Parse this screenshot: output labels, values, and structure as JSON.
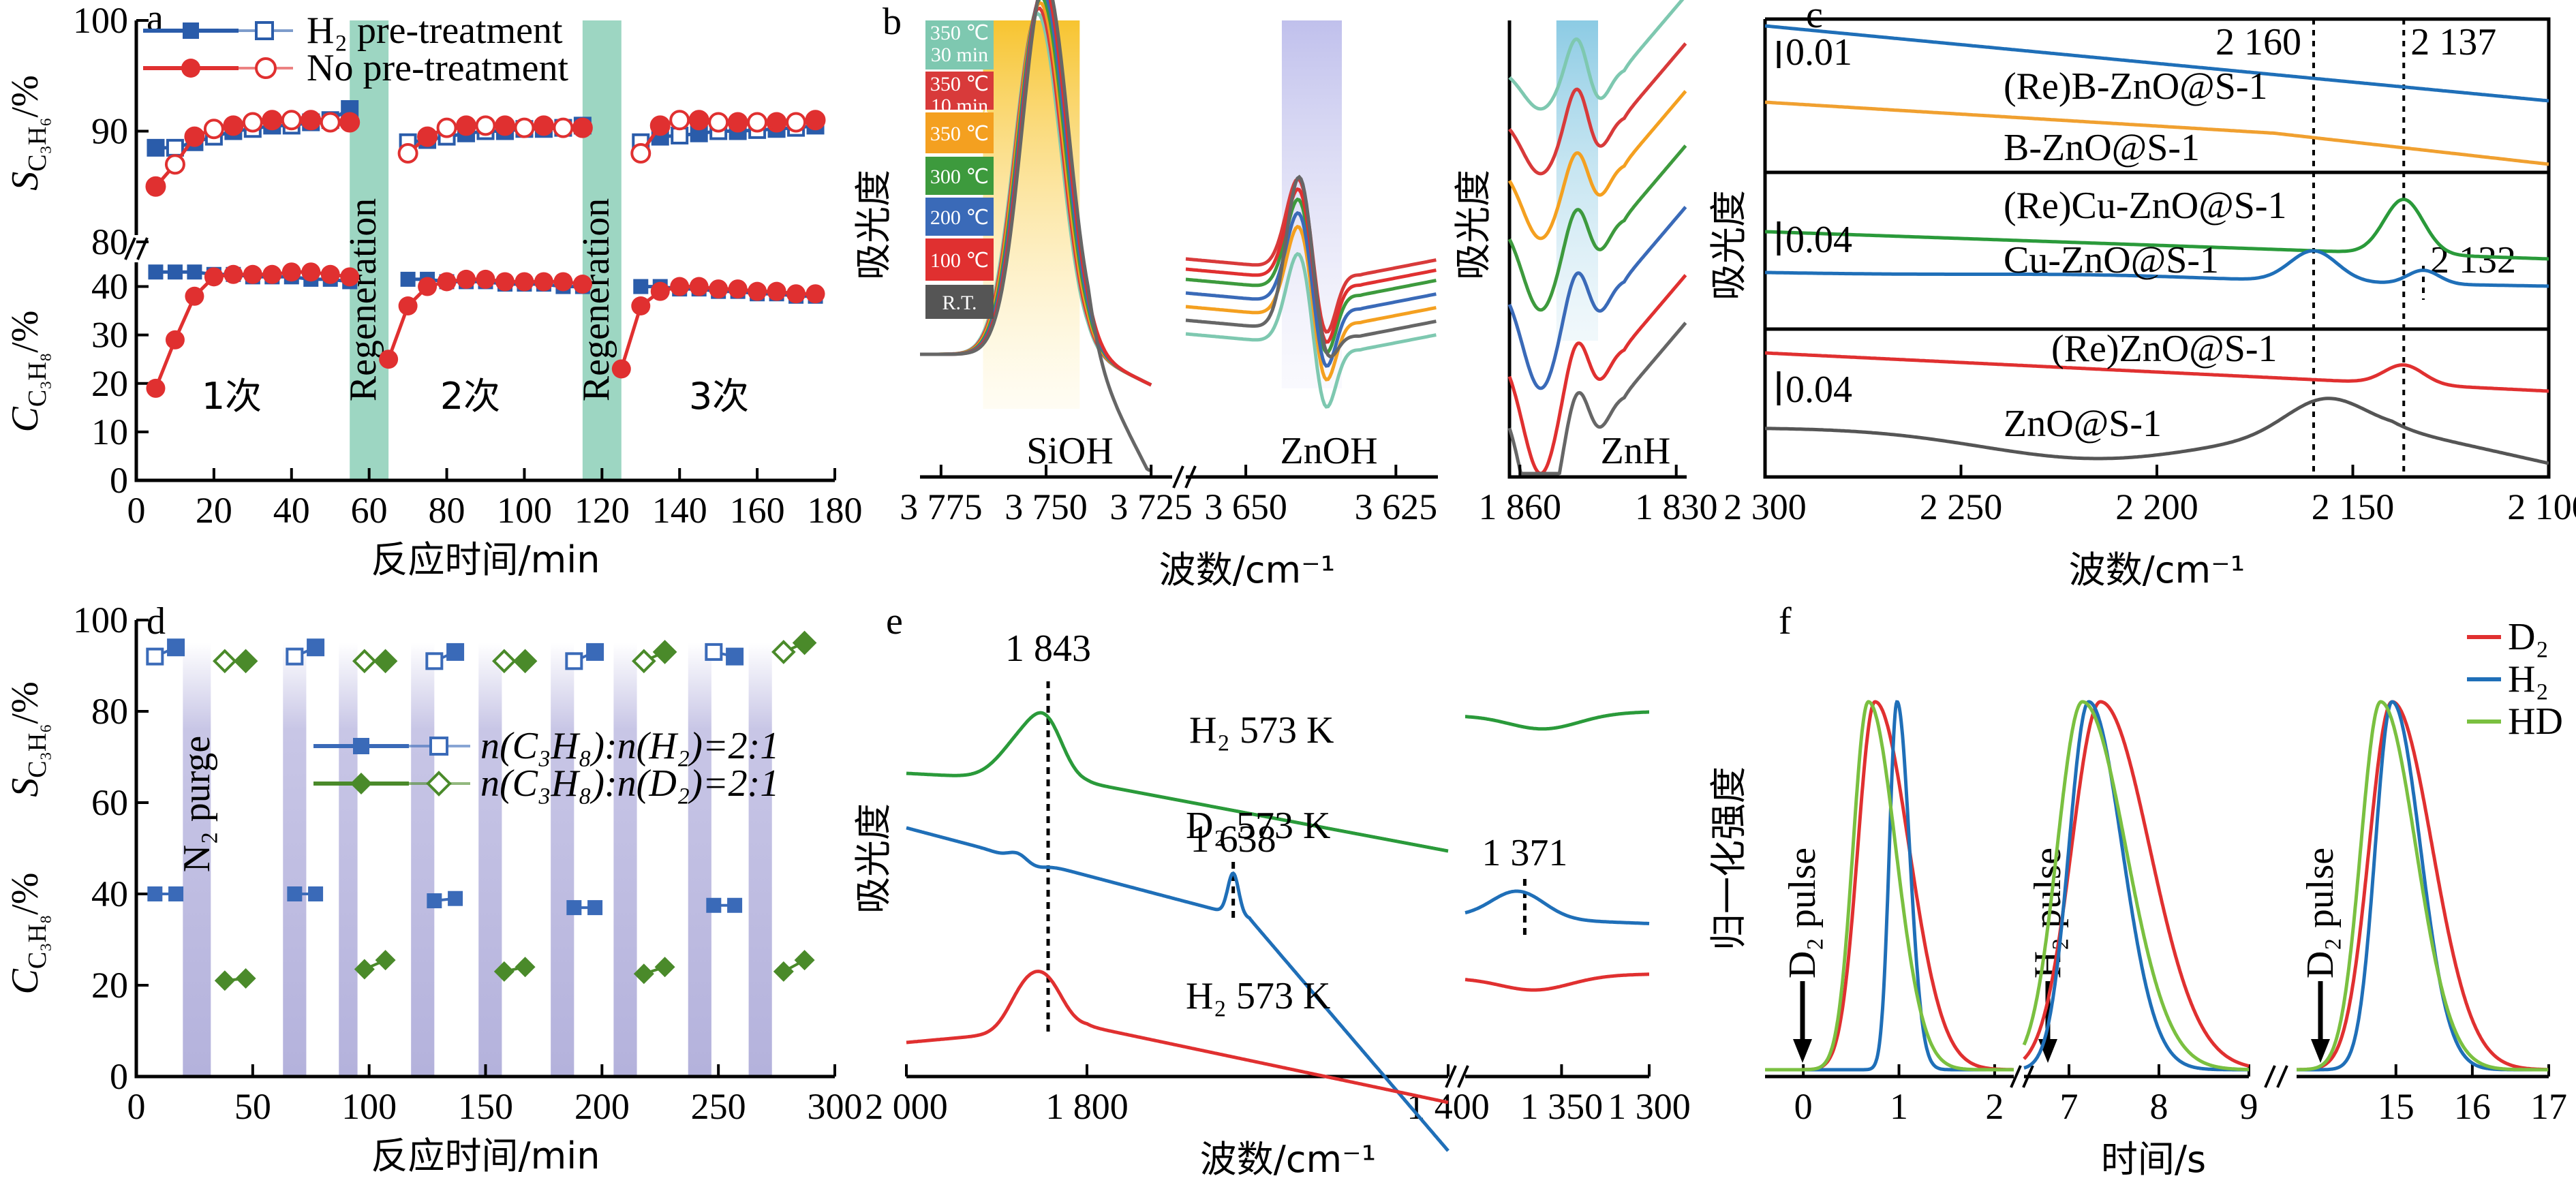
{
  "chart_data": [
    {
      "panel": "a",
      "type": "scatter",
      "xlabel_cn": "反应时间/min",
      "ylabel_top": "S_C3H6/%",
      "ylabel_bottom": "C_C3H8/%",
      "xlim": [
        0,
        180
      ],
      "xticks": [
        "0",
        "20",
        "40",
        "60",
        "80",
        "100",
        "120",
        "140",
        "160",
        "180"
      ],
      "yticks_top": [
        "80",
        "90",
        "100"
      ],
      "yticks_bottom": [
        "0",
        "10",
        "20",
        "30",
        "40"
      ],
      "legend": [
        "H₂ pre-treatment",
        "No pre-treatment"
      ],
      "cycle_labels": [
        "1次",
        "2次",
        "3次"
      ],
      "band_label": "Regeneration",
      "bands": [
        [
          55,
          65
        ],
        [
          115,
          125
        ]
      ],
      "series": [
        {
          "name": "H₂ pre-treatment",
          "color": "#2a5caa",
          "sel_x": [
            5,
            10,
            15,
            20,
            25,
            30,
            35,
            40,
            45,
            50,
            55,
            70,
            75,
            80,
            85,
            90,
            95,
            100,
            105,
            110,
            115,
            130,
            135,
            140,
            145,
            150,
            155,
            160,
            165,
            170,
            175
          ],
          "sel_y": [
            88.5,
            88.5,
            89,
            89.5,
            90,
            90.2,
            90.5,
            90.5,
            90.8,
            91,
            92,
            89,
            89.2,
            89.5,
            89.8,
            90,
            90,
            90.2,
            90.2,
            90.3,
            90.5,
            89,
            89.5,
            89.6,
            89.8,
            90,
            90,
            90.1,
            90.2,
            90.3,
            90.5
          ],
          "conv_x": [
            5,
            10,
            15,
            20,
            25,
            30,
            35,
            40,
            45,
            50,
            55,
            70,
            75,
            80,
            85,
            90,
            95,
            100,
            105,
            110,
            115,
            130,
            135,
            140,
            145,
            150,
            155,
            160,
            165,
            170,
            175
          ],
          "conv_y": [
            43,
            43,
            43,
            42.5,
            42.5,
            42,
            42,
            42,
            41.5,
            41.5,
            41,
            41.5,
            41.5,
            41,
            41,
            41,
            40.5,
            40.5,
            40.5,
            40,
            40,
            40,
            40,
            39.5,
            39.5,
            39,
            39,
            38.5,
            38.5,
            38,
            38
          ]
        },
        {
          "name": "No pre-treatment",
          "color": "#e03030",
          "sel_x": [
            5,
            10,
            15,
            20,
            25,
            30,
            35,
            40,
            45,
            50,
            55,
            70,
            75,
            80,
            85,
            90,
            95,
            100,
            105,
            110,
            115,
            130,
            135,
            140,
            145,
            150,
            155,
            160,
            165,
            170,
            175
          ],
          "sel_y": [
            85,
            87,
            89.5,
            90.2,
            90.5,
            90.8,
            91,
            91,
            91,
            90.8,
            90.8,
            88,
            89.5,
            90.3,
            90.5,
            90.5,
            90.5,
            90.3,
            90.5,
            90.3,
            90.3,
            88,
            90.5,
            91,
            91,
            90.8,
            90.8,
            90.8,
            90.8,
            90.8,
            91
          ],
          "conv_x": [
            5,
            10,
            15,
            20,
            25,
            30,
            35,
            40,
            45,
            50,
            55,
            65,
            70,
            75,
            80,
            85,
            90,
            95,
            100,
            105,
            110,
            115,
            125,
            130,
            135,
            140,
            145,
            150,
            155,
            160,
            165,
            170,
            175
          ],
          "conv_y": [
            19,
            29,
            38,
            42,
            42.5,
            42.5,
            42.5,
            43,
            43,
            42.5,
            42,
            25,
            36,
            40,
            41,
            41.5,
            41.5,
            41,
            41,
            41,
            41,
            40.5,
            23,
            36,
            39,
            40,
            40,
            39.5,
            39.5,
            39,
            39,
            38.5,
            38.5
          ]
        }
      ]
    },
    {
      "panel": "b",
      "type": "line",
      "xlabel_cn": "波数/cm⁻¹",
      "ylabel_cn": "吸光度",
      "segments": [
        {
          "xlim": [
            3780,
            3720
          ],
          "xticks": [
            "3 775",
            "3 750",
            "3 725"
          ],
          "label": "SiOH"
        },
        {
          "xlim": [
            3660,
            3618
          ],
          "xticks": [
            "3 650",
            "3 625"
          ],
          "label": "ZnOH"
        },
        {
          "xlim": [
            1862,
            1828
          ],
          "xticks": [
            "1 860",
            "1 830"
          ],
          "label": "ZnH"
        }
      ],
      "legend": [
        {
          "label": "350 ℃ 30 min",
          "color": "#7ec8b0"
        },
        {
          "label": "350 ℃ 10 min",
          "color": "#d83a3a"
        },
        {
          "label": "350 ℃",
          "color": "#f4a020"
        },
        {
          "label": "300 ℃",
          "color": "#3d9a3d"
        },
        {
          "label": "200 ℃",
          "color": "#3a6ab8"
        },
        {
          "label": "100 ℃",
          "color": "#e03030"
        },
        {
          "label": "R.T.",
          "color": "#555555"
        }
      ]
    },
    {
      "panel": "c",
      "type": "line",
      "xlabel_cn": "波数/cm⁻¹",
      "ylabel_cn": "吸光度",
      "xlim": [
        2300,
        2100
      ],
      "xticks": [
        "2 300",
        "2 250",
        "2 200",
        "2 150",
        "2 100"
      ],
      "markers": [
        "2 160",
        "2 137",
        "2 132"
      ],
      "scale_bars": [
        "0.01",
        "0.04",
        "0.04"
      ],
      "series": [
        {
          "name": "(Re)B-ZnO@S-1",
          "color": "#1f6fb8"
        },
        {
          "name": "B-ZnO@S-1",
          "color": "#f0a030"
        },
        {
          "name": "(Re)Cu-ZnO@S-1",
          "color": "#2a9a3a"
        },
        {
          "name": "Cu-ZnO@S-1",
          "color": "#1f6fb8"
        },
        {
          "name": "(Re)ZnO@S-1",
          "color": "#e03030"
        },
        {
          "name": "ZnO@S-1",
          "color": "#555555"
        }
      ]
    },
    {
      "panel": "d",
      "type": "scatter",
      "xlabel_cn": "反应时间/min",
      "ylabel_top": "S_C3H6/%",
      "ylabel_bottom": "C_C3H8/%",
      "xlim": [
        0,
        300
      ],
      "ylim": [
        0,
        100
      ],
      "xticks": [
        "0",
        "50",
        "100",
        "150",
        "200",
        "250",
        "300"
      ],
      "yticks": [
        "0",
        "20",
        "40",
        "60",
        "80",
        "100"
      ],
      "band_label": "N₂ purge",
      "legend": [
        "n(C₃H₈):n(H₂)=2:1",
        "n(C₃H₈):n(D₂)=2:1"
      ],
      "series": [
        {
          "name": "n(C₃H₈):n(H₂)=2:1",
          "color": "#3a6ab8",
          "sel_x": [
            8,
            17,
            68,
            77,
            128,
            137,
            188,
            197,
            248,
            257
          ],
          "sel_y": [
            92,
            94,
            92,
            94,
            91,
            93,
            91,
            93,
            93,
            92
          ],
          "conv_x": [
            8,
            17,
            68,
            77,
            128,
            137,
            188,
            197,
            248,
            257
          ],
          "conv_y": [
            40,
            40,
            40,
            40,
            38.5,
            39,
            37,
            37,
            37.5,
            37.5
          ]
        },
        {
          "name": "n(C₃H₈):n(D₂)=2:1",
          "color": "#4a8a2a",
          "sel_x": [
            38,
            47,
            98,
            107,
            158,
            167,
            218,
            227,
            278,
            287
          ],
          "sel_y": [
            91,
            91,
            91,
            91,
            91,
            91,
            91,
            93,
            93,
            95
          ],
          "conv_x": [
            38,
            47,
            98,
            107,
            158,
            167,
            218,
            227,
            278,
            287
          ],
          "conv_y": [
            21,
            21.5,
            23.5,
            25.5,
            23,
            24,
            22.5,
            24,
            23,
            25.5
          ]
        }
      ]
    },
    {
      "panel": "e",
      "type": "line",
      "xlabel_cn": "波数/cm⁻¹",
      "ylabel_cn": "吸光度",
      "segments": [
        {
          "xlim": [
            2000,
            1400
          ],
          "xticks": [
            "2 000",
            "1 800",
            "1 400"
          ]
        },
        {
          "xlim": [
            1405,
            1300
          ],
          "xticks": [
            "1 350",
            "1 300"
          ]
        }
      ],
      "markers": [
        "1 843",
        "1 638",
        "1 371"
      ],
      "series": [
        {
          "name": "H₂ 573 K",
          "color": "#2a9a3a"
        },
        {
          "name": "D₂ 573 K",
          "color": "#1f6fb8"
        },
        {
          "name": "H₂ 573 K",
          "color": "#e03030"
        }
      ]
    },
    {
      "panel": "f",
      "type": "line",
      "xlabel_cn": "时间/s",
      "ylabel_cn": "归一化强度",
      "segments": [
        {
          "xlim": [
            -0.4,
            2.2
          ],
          "xticks": [
            "0",
            "1",
            "2"
          ],
          "pulse": "D₂ pulse"
        },
        {
          "xlim": [
            6.5,
            9
          ],
          "xticks": [
            "7",
            "8",
            "9"
          ],
          "pulse": "H₂ pulse"
        },
        {
          "xlim": [
            13.7,
            17
          ],
          "xticks": [
            "15",
            "16",
            "17"
          ],
          "pulse": "D₂ pulse"
        }
      ],
      "series": [
        {
          "name": "D₂",
          "color": "#e03030"
        },
        {
          "name": "H₂",
          "color": "#1f6fb8"
        },
        {
          "name": "HD",
          "color": "#7ac040"
        }
      ]
    }
  ]
}
